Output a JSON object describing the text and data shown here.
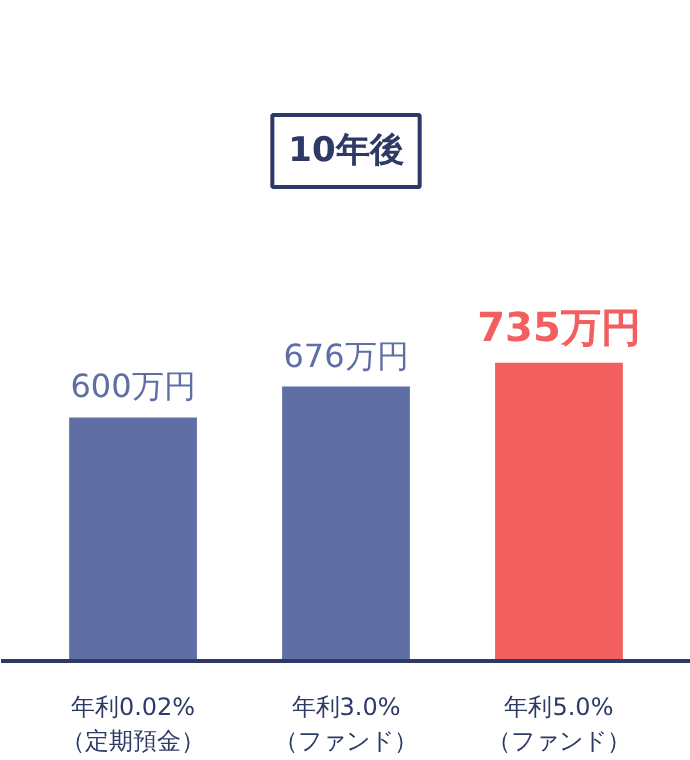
{
  "chart_data": {
    "type": "bar",
    "title": "10年後",
    "categories": [
      "年利0.02%\n（定期預金）",
      "年利3.0%\n（ファンド）",
      "年利5.0%\n（ファンド）"
    ],
    "values": [
      600,
      676,
      735
    ],
    "colors": [
      "#5f6fa5",
      "#5f6fa5",
      "#f25f5f"
    ],
    "value_labels": [
      "600万円",
      "676万円",
      "735万円"
    ]
  }
}
